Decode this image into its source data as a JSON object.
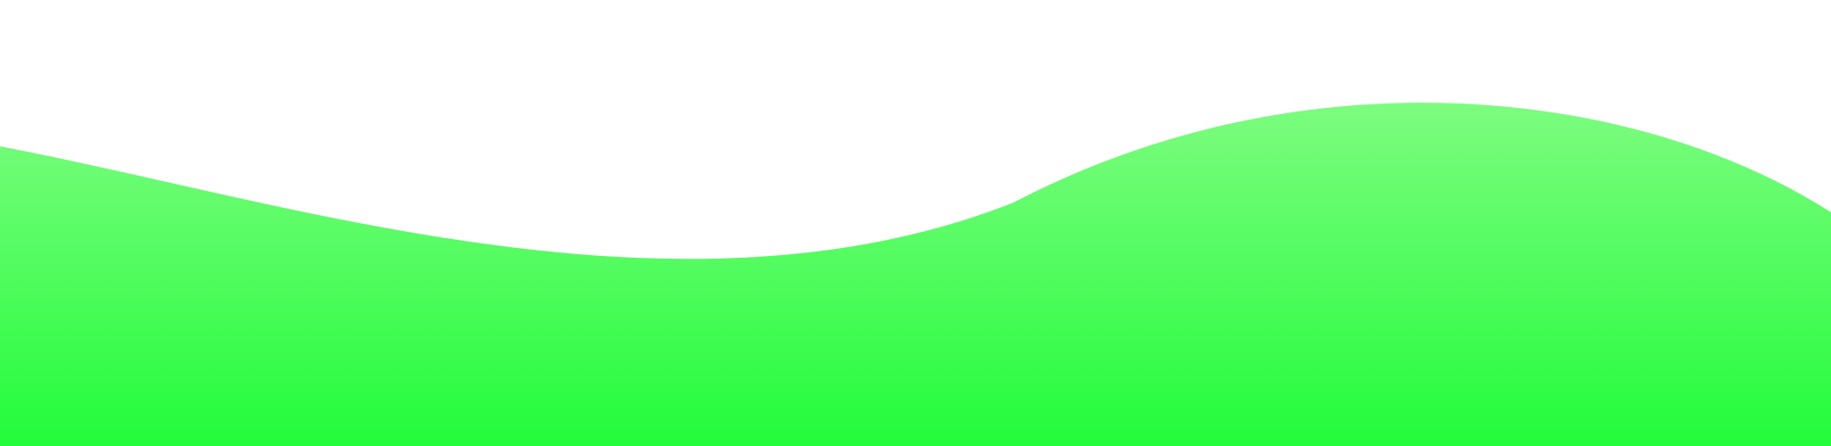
{
  "background_color": "#ffffff",
  "wave": {
    "gradient_top_color": "#7dfc80",
    "gradient_bottom_color": "#22fc3a"
  }
}
